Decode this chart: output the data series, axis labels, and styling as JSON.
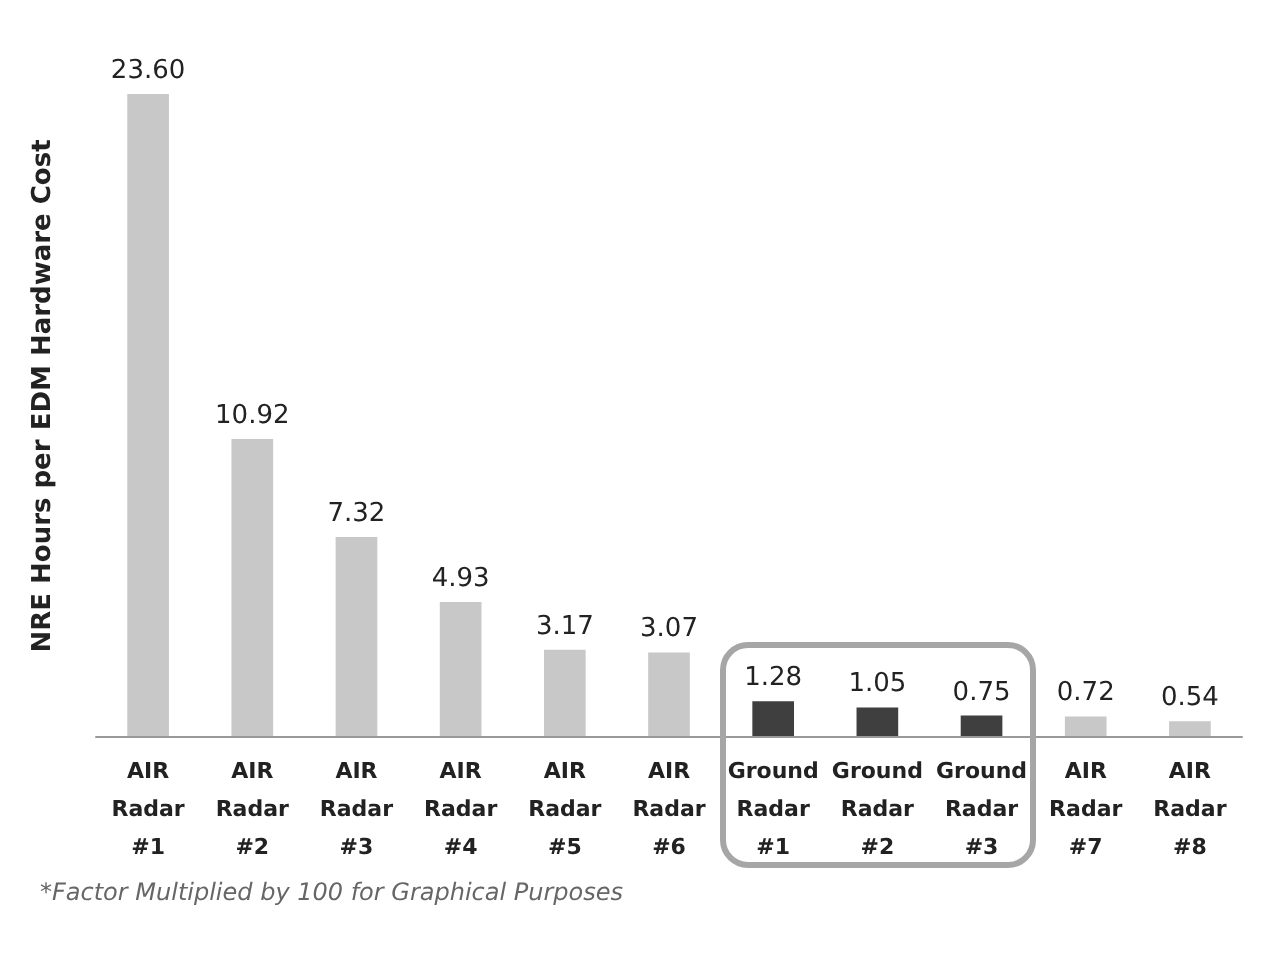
{
  "chart_data": {
    "type": "bar",
    "ylabel": "NRE Hours per EDM Hardware Cost",
    "categories": [
      "AIR Radar #1",
      "AIR Radar #2",
      "AIR Radar #3",
      "AIR Radar #4",
      "AIR Radar #5",
      "AIR Radar #6",
      "Ground Radar #1",
      "Ground Radar #2",
      "Ground Radar #3",
      "AIR Radar #7",
      "AIR Radar #8"
    ],
    "values": [
      23.6,
      10.92,
      7.32,
      4.93,
      3.17,
      3.07,
      1.28,
      1.05,
      0.75,
      0.72,
      0.54
    ],
    "colors": [
      "#c8c8c8",
      "#c8c8c8",
      "#c8c8c8",
      "#c8c8c8",
      "#c8c8c8",
      "#c8c8c8",
      "#3f3f3f",
      "#3f3f3f",
      "#3f3f3f",
      "#c8c8c8",
      "#c8c8c8"
    ],
    "value_labels": [
      "23.60",
      "10.92",
      "7.32",
      "4.93",
      "3.17",
      "3.07",
      "1.28",
      "1.05",
      "0.75",
      "0.72",
      "0.54"
    ],
    "annotations": [
      "*Factor Multiplied by 100 for Graphical Purposes"
    ]
  }
}
